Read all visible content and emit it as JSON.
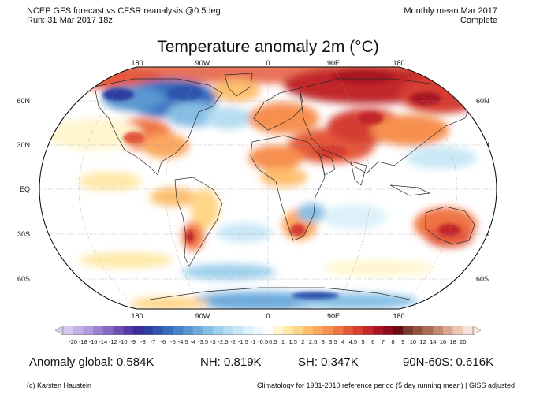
{
  "header": {
    "left_line1": "NCEP GFS forecast vs CFSR reanalysis @0.5deg",
    "left_line2": "Run: 31 Mar 2017 18z",
    "right_line1": "Monthly mean Mar 2017",
    "right_line2": "Complete"
  },
  "title": "Temperature anomaly 2m (°C)",
  "longitude_labels": [
    "180",
    "90W",
    "0",
    "90E",
    "180"
  ],
  "latitude_labels": [
    "60N",
    "30N",
    "EQ",
    "30S",
    "60S"
  ],
  "colorbar": {
    "ticks": [
      "-20",
      "-18",
      "-16",
      "-14",
      "-12",
      "-10",
      "-9",
      "-8",
      "-7",
      "-6",
      "-5",
      "-4.5",
      "-4",
      "-3.5",
      "-3",
      "-2.5",
      "-2",
      "-1.5",
      "-1",
      "-0.5",
      "0.5",
      "1",
      "1.5",
      "2",
      "2.5",
      "3",
      "3.5",
      "4",
      "4.5",
      "5",
      "6",
      "7",
      "8",
      "9",
      "10",
      "12",
      "14",
      "16",
      "18",
      "20"
    ],
    "colors": [
      "#d6c8ee",
      "#c4b2e6",
      "#b09bdc",
      "#9a82d0",
      "#8669c4",
      "#6f4fb4",
      "#5a39a6",
      "#3a2f9a",
      "#2d3d9e",
      "#2f55ae",
      "#356cbd",
      "#4582c8",
      "#5897d1",
      "#6eabdb",
      "#86bee4",
      "#9ecfeb",
      "#b5ddf1",
      "#c9e8f6",
      "#dcf1fa",
      "#edf8fc",
      "#ffffff",
      "#fff6cf",
      "#ffe8a8",
      "#ffd587",
      "#fdbf6f",
      "#fba85e",
      "#f78f4f",
      "#f07444",
      "#e4593a",
      "#d53e31",
      "#c1272b",
      "#a81723",
      "#8c0e1d",
      "#6c0a16",
      "#7a3a2e",
      "#93523f",
      "#ab6c55",
      "#c48a72",
      "#daa892",
      "#ecc6b3",
      "#f8e3d8"
    ]
  },
  "stats": {
    "global": "Anomaly global: 0.584K",
    "nh": "NH: 0.819K",
    "sh": "SH: 0.347K",
    "band": "90N-60S: 0.616K"
  },
  "footer": {
    "left": "(c) Karsten Haustein",
    "right": "Climatology for 1981-2010 reference period (5 day running mean) | GISS adjusted"
  }
}
